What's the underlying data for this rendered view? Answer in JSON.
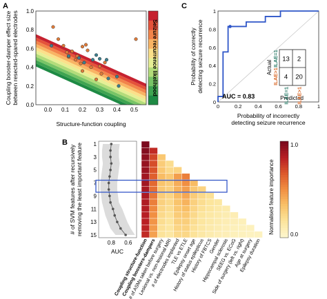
{
  "panels": {
    "a": "A",
    "b": "B",
    "c": "C"
  },
  "chart_data": [
    {
      "panel": "A",
      "type": "scatter",
      "title": "",
      "xlabel": "Structure-function coupling",
      "ylabel_lines": [
        "Coupling booster-damper effect size",
        "between resected-spared electrodes"
      ],
      "xticks": [
        "0.0",
        "0.1",
        "0.2",
        "0.3",
        "0.4",
        "0.5"
      ],
      "yticks": [
        "0.0",
        "0.2",
        "0.4",
        "0.6",
        "0.8",
        "1.0"
      ],
      "xlim": [
        -0.07,
        0.57
      ],
      "ylim": [
        0,
        1
      ],
      "colorbar_label": "Seizure recurrence likelihood",
      "background_bands": [
        "#1e8a44",
        "#3fa451",
        "#78c466",
        "#b3dc7a",
        "#e6ef95",
        "#fbe08a",
        "#f9b464",
        "#f2844a",
        "#e4523a",
        "#c62230"
      ],
      "series": [
        {
          "name": "",
          "color": "#e07b39",
          "points": [
            [
              0.03,
              0.83
            ],
            [
              0.06,
              0.7
            ],
            [
              0.09,
              0.63
            ],
            [
              0.14,
              0.57
            ],
            [
              0.12,
              0.51
            ],
            [
              0.17,
              0.52
            ],
            [
              0.2,
              0.62
            ],
            [
              0.23,
              0.58
            ],
            [
              0.19,
              0.44
            ],
            [
              0.2,
              0.36
            ],
            [
              0.25,
              0.4
            ],
            [
              0.3,
              0.41
            ],
            [
              0.31,
              0.33
            ],
            [
              0.28,
              0.27
            ],
            [
              0.33,
              0.45
            ],
            [
              0.11,
              0.56
            ],
            [
              0.16,
              0.48
            ],
            [
              0.22,
              0.64
            ],
            [
              0.51,
              0.7
            ]
          ]
        },
        {
          "name": "",
          "color": "#3d7f8f",
          "points": [
            [
              0.12,
              0.52
            ],
            [
              0.18,
              0.5
            ],
            [
              0.21,
              0.45
            ],
            [
              0.26,
              0.48
            ],
            [
              0.28,
              0.53
            ],
            [
              0.3,
              0.49
            ],
            [
              0.34,
              0.48
            ],
            [
              0.35,
              0.28
            ],
            [
              0.41,
              0.2
            ],
            [
              0.4,
              0.3
            ],
            [
              0.02,
              0.63
            ]
          ]
        }
      ]
    },
    {
      "panel": "C",
      "type": "line",
      "title": "",
      "xlabel_lines": [
        "Probability of incorrectly",
        "detecting seizure recurrence"
      ],
      "ylabel_lines": [
        "Probability of correctly",
        "detecting seizure recurrence"
      ],
      "xticks": [
        "0",
        "0.2",
        "0.4",
        "0.6",
        "0.8",
        "1"
      ],
      "yticks": [
        "0",
        "0.2",
        "0.4",
        "0.6",
        "0.8",
        "1"
      ],
      "xlim": [
        0,
        1
      ],
      "ylim": [
        0,
        1
      ],
      "auc_text": "AUC = 0.83",
      "roc": [
        [
          0,
          0
        ],
        [
          0,
          0.06
        ],
        [
          0.05,
          0.06
        ],
        [
          0.05,
          0.55
        ],
        [
          0.1,
          0.55
        ],
        [
          0.1,
          0.83
        ],
        [
          0.28,
          0.83
        ],
        [
          0.28,
          0.88
        ],
        [
          0.47,
          0.88
        ],
        [
          0.47,
          0.94
        ],
        [
          0.62,
          0.94
        ],
        [
          0.62,
          1.0
        ],
        [
          1.0,
          1.0
        ]
      ],
      "operating_point": [
        0.12,
        0.83
      ],
      "confusion_matrix": {
        "actual_label": "Actual",
        "predicted_label": "Predicted",
        "row_labels": [
          "ILAE=1",
          "ILAE>1"
        ],
        "col_labels": [
          "ILAE=1",
          "ILAE>1"
        ],
        "values": [
          [
            13,
            2
          ],
          [
            4,
            20
          ]
        ],
        "label_colors": {
          "ILAE=1": "#2e7d6b",
          "ILAE>1": "#d96a2a"
        }
      }
    },
    {
      "panel": "B-left",
      "type": "line",
      "title": "",
      "xlabel": "AUC",
      "ylabel_lines": [
        "# of SVM features after recursively",
        "removing the least important feature"
      ],
      "xticks": [
        "0.8",
        "0.6"
      ],
      "yticks": [
        "1",
        "3",
        "5",
        "7",
        "9",
        "11",
        "13",
        "15"
      ],
      "xlim": [
        0.95,
        0.5
      ],
      "ylim": [
        1,
        15
      ],
      "n_features": [
        1,
        2,
        3,
        4,
        5,
        6,
        7,
        8,
        9,
        10,
        11,
        12,
        13,
        14,
        15
      ],
      "auc": [
        0.8,
        0.81,
        0.81,
        0.8,
        0.81,
        0.82,
        0.83,
        0.83,
        0.82,
        0.81,
        0.78,
        0.76,
        0.73,
        0.69,
        0.63
      ],
      "auc_lower": [
        0.7,
        0.71,
        0.71,
        0.7,
        0.71,
        0.72,
        0.73,
        0.73,
        0.72,
        0.71,
        0.67,
        0.64,
        0.61,
        0.57,
        0.52
      ],
      "auc_upper": [
        0.9,
        0.91,
        0.91,
        0.9,
        0.91,
        0.92,
        0.93,
        0.93,
        0.92,
        0.91,
        0.89,
        0.87,
        0.84,
        0.81,
        0.75
      ],
      "highlight_rows": [
        7,
        8
      ]
    },
    {
      "panel": "B-right",
      "type": "heatmap",
      "title": "",
      "features": [
        "Coupling structure-function",
        "Coupling boosters-dampers",
        "# of ASMs taken before surgery",
        "Lesional vs. non-lesional MRI",
        "# of electrodes implanted",
        "TLE vs ETLE",
        "Epilepsy onset age",
        "History of status epilepticus",
        "History of FBTCS",
        "Gender",
        "Hippocampal sclerosis",
        "SEEG vs. ECoG",
        "Side of surgery (left vs. right)",
        "Age at surgery",
        "Epilepsy duration"
      ],
      "bold_features": [
        0,
        1
      ],
      "colorbar_label": "Normalised feature importance",
      "colorbar_ticks": [
        "1.0",
        "0.0"
      ],
      "colormap": [
        "#fdf6cc",
        "#fce49a",
        "#f9c168",
        "#f18f42",
        "#dd5a2b",
        "#b91f24",
        "#7c0a1e"
      ],
      "importance": [
        [
          1.0
        ],
        [
          0.98,
          0.8
        ],
        [
          0.95,
          0.72,
          0.3
        ],
        [
          0.93,
          0.7,
          0.28,
          0.2
        ],
        [
          0.92,
          0.68,
          0.3,
          0.22,
          0.25
        ],
        [
          0.9,
          0.65,
          0.35,
          0.3,
          0.45,
          0.55
        ],
        [
          0.9,
          0.62,
          0.32,
          0.28,
          0.4,
          0.5,
          0.35
        ],
        [
          0.88,
          0.6,
          0.3,
          0.26,
          0.38,
          0.45,
          0.3,
          0.25
        ],
        [
          0.87,
          0.58,
          0.28,
          0.24,
          0.35,
          0.42,
          0.28,
          0.22,
          0.18
        ],
        [
          0.86,
          0.55,
          0.26,
          0.22,
          0.32,
          0.38,
          0.26,
          0.2,
          0.16,
          0.14
        ],
        [
          0.85,
          0.52,
          0.24,
          0.2,
          0.3,
          0.34,
          0.24,
          0.18,
          0.15,
          0.12,
          0.1
        ],
        [
          0.84,
          0.5,
          0.22,
          0.18,
          0.28,
          0.3,
          0.22,
          0.16,
          0.13,
          0.11,
          0.09,
          0.08
        ],
        [
          0.83,
          0.48,
          0.2,
          0.16,
          0.26,
          0.27,
          0.2,
          0.15,
          0.12,
          0.1,
          0.08,
          0.07,
          0.06
        ],
        [
          0.82,
          0.46,
          0.18,
          0.15,
          0.24,
          0.25,
          0.18,
          0.14,
          0.11,
          0.09,
          0.07,
          0.06,
          0.05,
          0.05
        ],
        [
          0.8,
          0.44,
          0.17,
          0.14,
          0.22,
          0.23,
          0.17,
          0.13,
          0.1,
          0.08,
          0.07,
          0.06,
          0.05,
          0.04,
          0.04
        ]
      ]
    }
  ]
}
